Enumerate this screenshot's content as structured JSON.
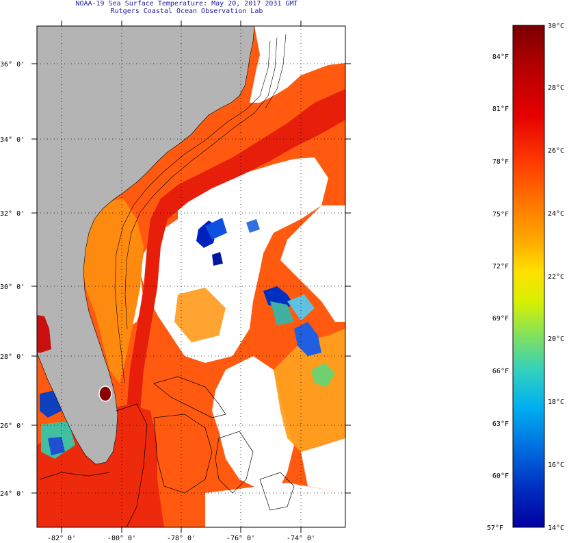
{
  "title": {
    "line1": "NOAA-19 Sea Surface Temperature:  May 20, 2017 2031 GMT",
    "line2": "Rutgers Coastal Ocean Observation Lab"
  },
  "axes": {
    "lat_labels": [
      "36° 0'",
      "34° 0'",
      "32° 0'",
      "30° 0'",
      "28° 0'",
      "26° 0'",
      "24° 0'"
    ],
    "lon_labels": [
      "-82° 0'",
      "-80° 0'",
      "-78° 0'",
      "-76° 0'",
      "-74° 0'"
    ]
  },
  "colorbar": {
    "celsius_labels": [
      "30°C",
      "28°C",
      "26°C",
      "24°C",
      "22°C",
      "20°C",
      "18°C",
      "16°C",
      "14°C"
    ],
    "fahrenheit_labels": [
      "84°F",
      "81°F",
      "78°F",
      "75°F",
      "72°F",
      "69°F",
      "66°F",
      "63°F",
      "60°F",
      "57°F"
    ],
    "colors": [
      "#7a0000",
      "#b30000",
      "#e60000",
      "#ff4000",
      "#ff7a00",
      "#ffaa00",
      "#ffe000",
      "#d8f000",
      "#80e060",
      "#30d0c0",
      "#00b0f0",
      "#0070e0",
      "#0030c0",
      "#0000a0"
    ]
  },
  "colors": {
    "land": "#b4b4b4",
    "warm_ocean": "#ff5a10",
    "gulf_stream": "#e81e0a",
    "cloud": "#ffffff",
    "text": "#1a1aa0"
  }
}
